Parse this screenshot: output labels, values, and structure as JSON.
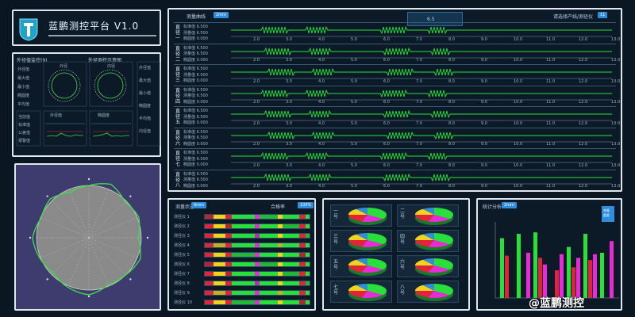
{
  "header": {
    "title": "蓝鹏测控平台 V1.0"
  },
  "mini_panel": {
    "section_left": "外径值监控(9)",
    "section_right": "外径测控示意图",
    "ring_left_title": "外径",
    "ring_right_title": "内径",
    "small_chart_left": "外径值",
    "small_chart_right": "椭圆度",
    "left_labels": [
      "外径值",
      "最大值",
      "最小值",
      "椭圆度",
      "平均值"
    ],
    "right_labels": [
      "外径值",
      "最大值",
      "最小值",
      "椭圆度",
      "平均值",
      "内径值"
    ],
    "bottom_labels": [
      "当前值",
      "标准值",
      "公差值",
      "报警值"
    ]
  },
  "wave_panel": {
    "header_left": "测量曲线",
    "header_left_badge": "2mm",
    "center_value": "6.5",
    "header_right": "请选择产线/测径仪",
    "header_right_badge": "11",
    "x_ticks": [
      "2.0",
      "3.0",
      "4.0",
      "5.0",
      "6.0",
      "7.0",
      "8.0",
      "9.0",
      "10.0",
      "11.0",
      "12.0",
      "13.0"
    ],
    "rows": [
      {
        "tag": "直径一",
        "l1": "标准值 6.500",
        "l2": "测量值 6.500",
        "l3": "椭圆度 0.000"
      },
      {
        "tag": "直径二",
        "l1": "标准值 6.500",
        "l2": "测量值 6.500",
        "l3": "椭圆度 0.000"
      },
      {
        "tag": "直径三",
        "l1": "标准值 6.500",
        "l2": "测量值 6.500",
        "l3": "椭圆度 0.000"
      },
      {
        "tag": "直径四",
        "l1": "标准值 6.500",
        "l2": "测量值 6.500",
        "l3": "椭圆度 0.000"
      },
      {
        "tag": "直径五",
        "l1": "标准值 6.500",
        "l2": "测量值 6.500",
        "l3": "椭圆度 0.000"
      },
      {
        "tag": "直径六",
        "l1": "标准值 6.500",
        "l2": "测量值 6.500",
        "l3": "椭圆度 0.000"
      },
      {
        "tag": "直径七",
        "l1": "标准值 6.500",
        "l2": "测量值 6.500",
        "l3": "椭圆度 0.000"
      },
      {
        "tag": "直径八",
        "l1": "标准值 6.500",
        "l2": "测量值 6.500",
        "l3": "椭圆度 0.000"
      }
    ]
  },
  "bar_panel": {
    "header_left": "测量状态",
    "badge_left": "6mm",
    "header_right": "合格率",
    "badge_right": "100%",
    "rows": [
      "测径仪 1",
      "测径仪 2",
      "测径仪 3",
      "测径仪 4",
      "测径仪 5",
      "测径仪 6",
      "测径仪 7",
      "测径仪 8",
      "测径仪 9",
      "测径仪 10"
    ]
  },
  "pie_panel": {
    "cards": [
      {
        "label": "一号"
      },
      {
        "label": "二号"
      },
      {
        "label": "三号"
      },
      {
        "label": "四号"
      },
      {
        "label": "五号"
      },
      {
        "label": "六号"
      },
      {
        "label": "七号"
      },
      {
        "label": "八号"
      }
    ]
  },
  "chart_panel": {
    "header": "统计分析",
    "badge": "2mm",
    "legend": "合格\n超差"
  },
  "watermark": "@蓝鹏测控",
  "colors": {
    "panel_border": "#dfe7ee",
    "bg": "#0a1622",
    "green": "#27e03a",
    "red": "#e0253a",
    "magenta": "#e82ad9",
    "yellow": "#f2d21c",
    "blue_accent": "#2f8ddc"
  }
}
